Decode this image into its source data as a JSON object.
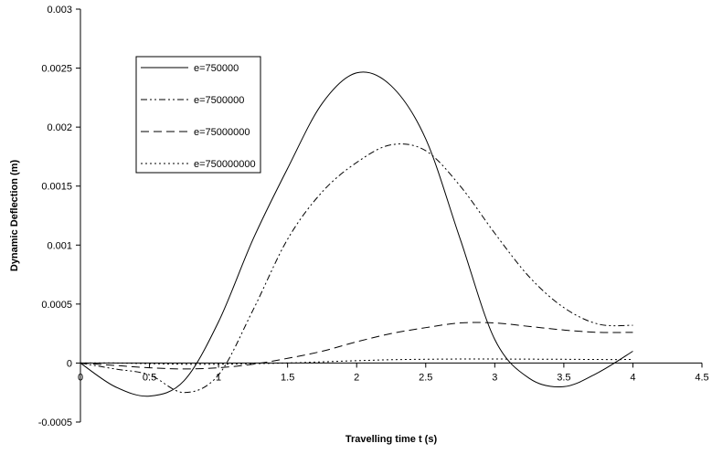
{
  "chart_data": {
    "type": "line",
    "title": "",
    "xlabel": "Travelling time t (s)",
    "ylabel": "Dynamic Deflection (m)",
    "xlim": [
      0,
      4.5
    ],
    "ylim": [
      -0.0005,
      0.003
    ],
    "x_ticks": [
      "0",
      "0.5",
      "1",
      "1.5",
      "2",
      "2.5",
      "3",
      "3.5",
      "4",
      "4.5"
    ],
    "y_ticks": [
      "-0.0005",
      "0",
      "0.0005",
      "0.001",
      "0.0015",
      "0.002",
      "0.0025",
      "0.003"
    ],
    "grid": false,
    "legend_position": "upper-left",
    "x": [
      0,
      0.25,
      0.5,
      0.75,
      1.0,
      1.25,
      1.5,
      1.75,
      2.0,
      2.25,
      2.5,
      2.75,
      3.0,
      3.25,
      3.5,
      3.75,
      4.0
    ],
    "series": [
      {
        "name": "e=750000",
        "dash": "solid",
        "values": [
          0,
          -0.0002,
          -0.00028,
          -0.00015,
          0.00035,
          0.00105,
          0.00165,
          0.0022,
          0.00246,
          0.00235,
          0.0019,
          0.00105,
          0.0002,
          -0.00013,
          -0.0002,
          -8e-05,
          0.0001
        ]
      },
      {
        "name": "e=7500000",
        "dash": "dash-dot-dot",
        "values": [
          0,
          -5e-05,
          -0.0001,
          -0.00025,
          -0.0001,
          0.00045,
          0.00105,
          0.00145,
          0.0017,
          0.00185,
          0.0018,
          0.0015,
          0.0011,
          0.00073,
          0.00047,
          0.00033,
          0.00032
        ]
      },
      {
        "name": "e=75000000",
        "dash": "dash",
        "values": [
          0,
          -2e-05,
          -4e-05,
          -5e-05,
          -4e-05,
          -1e-05,
          4e-05,
          0.0001,
          0.00018,
          0.00025,
          0.0003,
          0.00034,
          0.00034,
          0.00031,
          0.00028,
          0.00026,
          0.00026
        ]
      },
      {
        "name": "e=750000000",
        "dash": "dot",
        "values": [
          0,
          0,
          -5e-06,
          -1e-05,
          -1e-05,
          -5e-06,
          0,
          1e-05,
          2e-05,
          2.8e-05,
          3.2e-05,
          3.4e-05,
          3.4e-05,
          3.3e-05,
          3.2e-05,
          3e-05,
          3e-05
        ]
      }
    ]
  }
}
